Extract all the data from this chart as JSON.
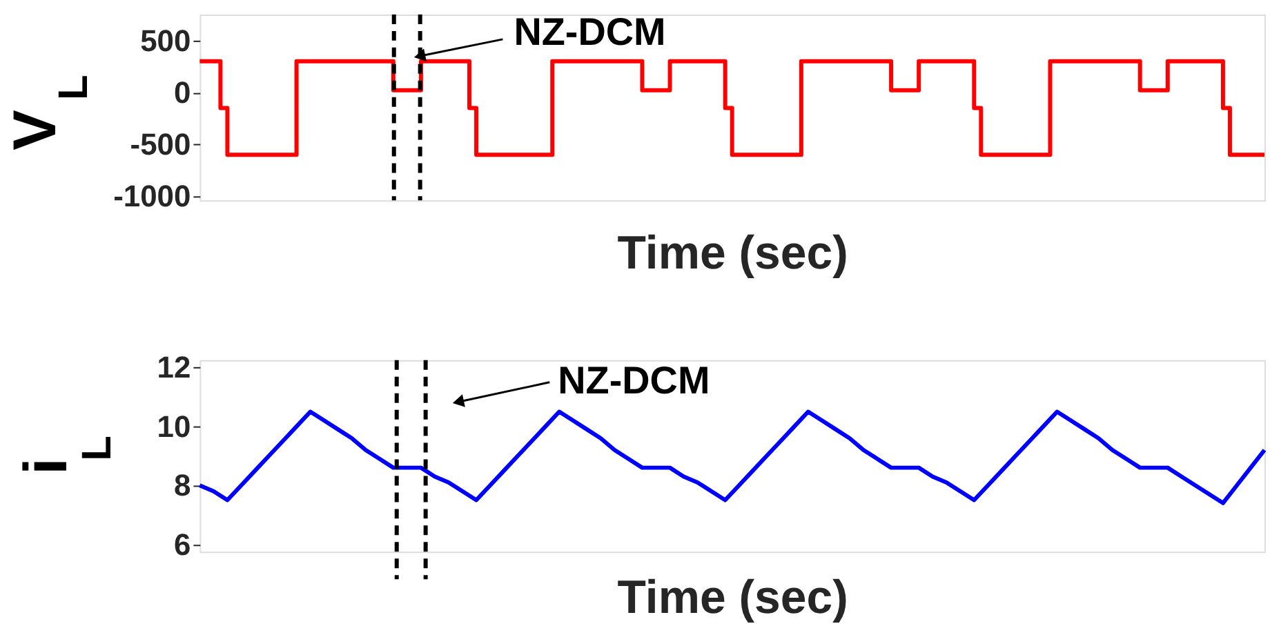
{
  "chart_data": [
    {
      "type": "step",
      "xlabel": "Time (sec)",
      "ylabel": "V$_{L}$",
      "ylim": [
        -1040,
        750
      ],
      "yticks": [
        -1000,
        -500,
        0,
        500
      ],
      "tick_labels": "y",
      "grid": false,
      "legend": false,
      "categories": [
        null,
        null,
        null,
        null,
        null,
        null,
        null,
        null,
        null,
        null,
        null,
        null,
        null,
        null,
        null,
        null,
        null,
        null,
        null,
        null,
        null,
        null,
        null,
        null,
        null,
        null,
        null,
        null,
        null,
        null,
        null,
        null,
        null,
        null,
        null,
        null,
        null,
        null,
        null,
        null,
        null,
        null,
        null,
        null,
        null,
        null,
        null,
        null,
        null,
        null,
        null,
        null,
        null,
        null,
        null,
        null,
        null,
        null,
        null,
        null,
        null,
        null,
        null,
        null,
        null,
        null,
        null,
        null,
        null,
        null,
        null,
        null,
        null,
        null,
        null,
        null,
        null,
        null,
        null,
        null,
        null,
        null,
        null,
        null,
        null,
        null,
        null,
        null,
        null,
        null,
        null,
        null,
        null,
        null,
        null,
        null,
        null,
        null,
        null,
        null,
        null,
        null,
        null,
        null,
        null,
        null,
        null,
        null,
        null,
        null,
        null,
        null,
        null,
        null,
        null,
        null,
        null,
        null,
        null,
        null,
        null,
        null,
        null,
        null,
        null,
        null,
        null,
        null,
        null,
        null,
        null,
        null,
        null,
        null,
        null,
        null,
        null,
        null,
        null,
        null,
        null,
        null,
        null,
        null,
        null,
        null,
        null,
        null,
        null,
        null,
        null,
        null,
        null,
        null,
        null
      ],
      "series": [
        {
          "color": "#ff0000",
          "values": [
            300,
            300,
            300,
            -150,
            -600,
            -600,
            -600,
            -600,
            -600,
            -600,
            -600,
            -600,
            -600,
            -600,
            300,
            300,
            300,
            300,
            300,
            300,
            300,
            300,
            300,
            300,
            300,
            300,
            300,
            300,
            20,
            20,
            20,
            20,
            300,
            300,
            300,
            300,
            300,
            300,
            300,
            -150,
            -600,
            -600,
            -600,
            -600,
            -600,
            -600,
            -600,
            -600,
            -600,
            -600,
            -600,
            300,
            300,
            300,
            300,
            300,
            300,
            300,
            300,
            300,
            300,
            300,
            300,
            300,
            20,
            20,
            20,
            20,
            300,
            300,
            300,
            300,
            300,
            300,
            300,
            300,
            -150,
            -600,
            -600,
            -600,
            -600,
            -600,
            -600,
            -600,
            -600,
            -600,
            -600,
            300,
            300,
            300,
            300,
            300,
            300,
            300,
            300,
            300,
            300,
            300,
            300,
            300,
            20,
            20,
            20,
            20,
            300,
            300,
            300,
            300,
            300,
            300,
            300,
            300,
            -150,
            -600,
            -600,
            -600,
            -600,
            -600,
            -600,
            -600,
            -600,
            -600,
            -600,
            300,
            300,
            300,
            300,
            300,
            300,
            300,
            300,
            300,
            300,
            300,
            300,
            300,
            20,
            20,
            20,
            20,
            300,
            300,
            300,
            300,
            300,
            300,
            300,
            300,
            -150,
            -600,
            -600,
            -600,
            -600,
            -600,
            -600
          ]
        }
      ],
      "annotations": [
        "NZ-DCM"
      ]
    },
    {
      "type": "line",
      "xlabel": "Time (sec)",
      "ylabel": "i$_{L}$",
      "ylim": [
        5.75,
        12.25
      ],
      "yticks": [
        6,
        8,
        10,
        12
      ],
      "tick_labels": "y",
      "grid": false,
      "legend": false,
      "categories": [
        null,
        null,
        null,
        null,
        null,
        null,
        null,
        null,
        null,
        null,
        null,
        null,
        null,
        null,
        null,
        null,
        null,
        null,
        null,
        null,
        null,
        null,
        null,
        null,
        null,
        null,
        null,
        null,
        null,
        null,
        null,
        null,
        null,
        null,
        null,
        null,
        null,
        null,
        null,
        null,
        null,
        null,
        null,
        null,
        null,
        null,
        null,
        null,
        null,
        null,
        null,
        null,
        null,
        null,
        null,
        null,
        null,
        null,
        null,
        null,
        null,
        null,
        null,
        null,
        null,
        null,
        null,
        null,
        null,
        null,
        null,
        null,
        null,
        null,
        null,
        null,
        null,
        null
      ],
      "series": [
        {
          "color": "#0000ff",
          "values": [
            8.0,
            7.8,
            7.5,
            8.0,
            8.5,
            9.0,
            9.5,
            10.0,
            10.5,
            10.2,
            9.9,
            9.6,
            9.2,
            8.9,
            8.6,
            8.6,
            8.6,
            8.3,
            8.1,
            7.8,
            7.5,
            8.0,
            8.5,
            9.0,
            9.5,
            10.0,
            10.5,
            10.2,
            9.9,
            9.6,
            9.2,
            8.9,
            8.6,
            8.6,
            8.6,
            8.3,
            8.1,
            7.8,
            7.5,
            8.0,
            8.5,
            9.0,
            9.5,
            10.0,
            10.5,
            10.2,
            9.9,
            9.6,
            9.2,
            8.9,
            8.6,
            8.6,
            8.6,
            8.3,
            8.1,
            7.8,
            7.5,
            8.0,
            8.5,
            9.0,
            9.5,
            10.0,
            10.5,
            10.2,
            9.9,
            9.6,
            9.2,
            8.9,
            8.6,
            8.6,
            8.6,
            8.3,
            8.0,
            7.7,
            7.4,
            8.0,
            8.6,
            9.2
          ]
        }
      ],
      "annotations": [
        "NZ-DCM"
      ]
    }
  ]
}
